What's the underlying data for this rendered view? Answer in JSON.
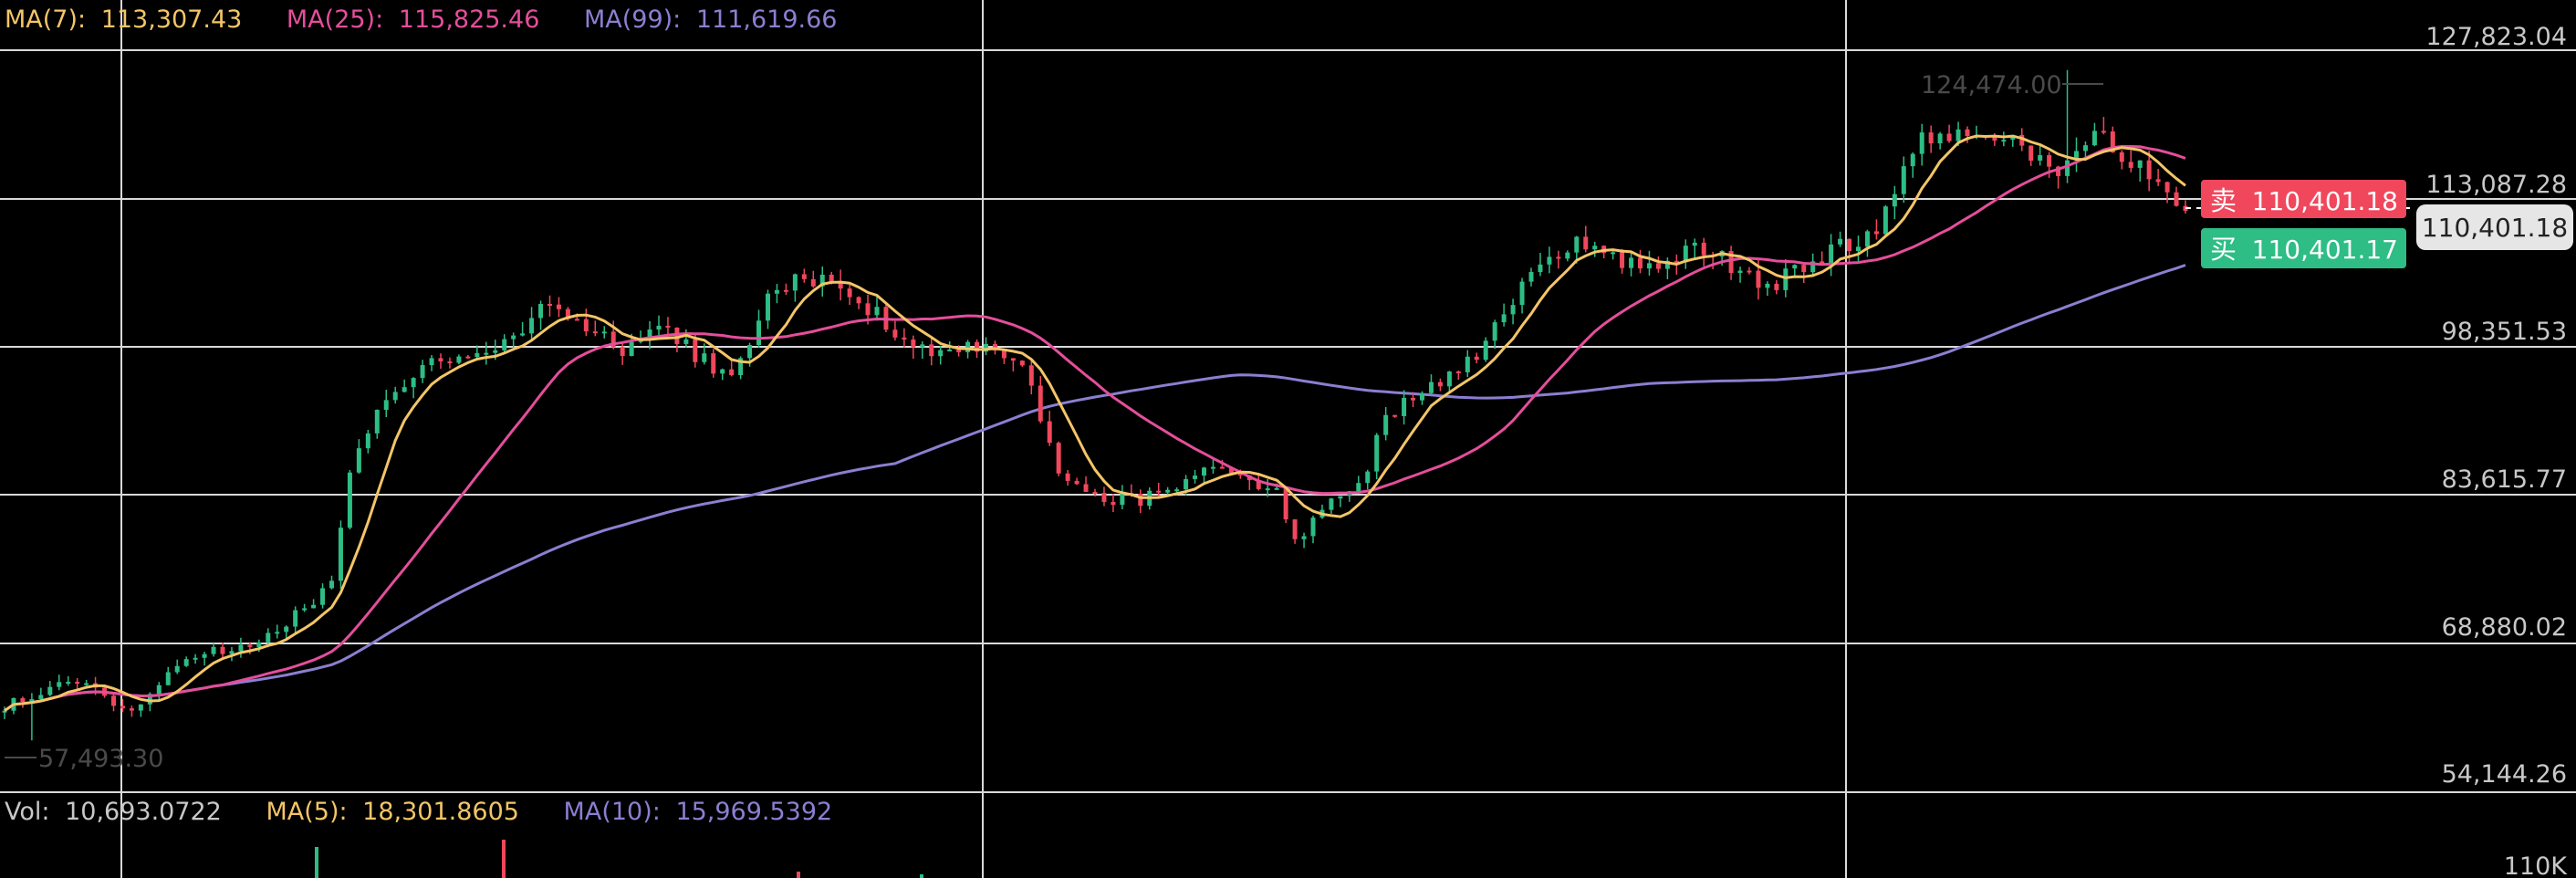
{
  "colors": {
    "background": "#000000",
    "grid": "#d9d9d9",
    "up": "#2dbd85",
    "down": "#f0475c",
    "ma_short": "#f3c567",
    "ma_mid": "#e44e9b",
    "ma_long": "#8b7fd1",
    "axis_text": "#c8c8c8",
    "annotation": "#4a4a4a",
    "sell_bg": "#f0475c",
    "buy_bg": "#2dbd85",
    "last_price_bg": "#e6e6e6"
  },
  "legend": {
    "ma7_label": "MA(7):",
    "ma7_value": "113,307.43",
    "ma25_label": "MA(25):",
    "ma25_value": "115,825.46",
    "ma99_label": "MA(99):",
    "ma99_value": "111,619.66"
  },
  "volume_legend": {
    "vol_label": "Vol:",
    "vol_value": "10,693.0722",
    "ma5_label": "MA(5):",
    "ma5_value": "18,301.8605",
    "ma10_label": "MA(10):",
    "ma10_value": "15,969.5392"
  },
  "price_axis_labels": [
    "127,823.04",
    "113,087.28",
    "98,351.53",
    "83,615.77",
    "68,880.02",
    "54,144.26"
  ],
  "volume_axis_label": "110K",
  "annotations": {
    "high": "124,474.00",
    "low": "57,493.30"
  },
  "order_book": {
    "sell_label": "卖",
    "sell_price": "110,401.18",
    "buy_label": "买",
    "buy_price": "110,401.17",
    "last_price": "110,401.18"
  },
  "chart_data": {
    "type": "candlestick",
    "y_axis_ticks": [
      127823.04,
      113087.28,
      98351.53,
      83615.77,
      68880.02,
      54144.26
    ],
    "ylim": [
      54144.26,
      127823.04
    ],
    "price_anchors": [
      [
        0,
        61000
      ],
      [
        8,
        63500
      ],
      [
        14,
        60500
      ],
      [
        20,
        66000
      ],
      [
        26,
        66500
      ],
      [
        32,
        70000
      ],
      [
        36,
        73000
      ],
      [
        38,
        85000
      ],
      [
        42,
        92000
      ],
      [
        46,
        95000
      ],
      [
        52,
        95500
      ],
      [
        56,
        98000
      ],
      [
        60,
        101000
      ],
      [
        64,
        99000
      ],
      [
        68,
        96500
      ],
      [
        72,
        99000
      ],
      [
        76,
        96000
      ],
      [
        80,
        93500
      ],
      [
        84,
        101500
      ],
      [
        88,
        104000
      ],
      [
        92,
        103000
      ],
      [
        96,
        100000
      ],
      [
        100,
        97000
      ],
      [
        104,
        96500
      ],
      [
        108,
        97000
      ],
      [
        112,
        95000
      ],
      [
        116,
        84000
      ],
      [
        120,
        82000
      ],
      [
        124,
        81500
      ],
      [
        128,
        82000
      ],
      [
        132,
        84000
      ],
      [
        136,
        84500
      ],
      [
        140,
        82000
      ],
      [
        142,
        77500
      ],
      [
        146,
        81500
      ],
      [
        150,
        84500
      ],
      [
        152,
        90000
      ],
      [
        158,
        93500
      ],
      [
        162,
        95500
      ],
      [
        166,
        101500
      ],
      [
        170,
        106000
      ],
      [
        174,
        107500
      ],
      [
        178,
        105500
      ],
      [
        182,
        104500
      ],
      [
        186,
        107000
      ],
      [
        190,
        105000
      ],
      [
        194,
        103000
      ],
      [
        198,
        104500
      ],
      [
        202,
        107000
      ],
      [
        206,
        108000
      ],
      [
        210,
        117000
      ],
      [
        214,
        118000
      ],
      [
        218,
        117500
      ],
      [
        222,
        117000
      ],
      [
        226,
        113500
      ],
      [
        230,
        118000
      ],
      [
        234,
        115500
      ],
      [
        238,
        113000
      ],
      [
        240,
        110401
      ]
    ],
    "period_count": 241,
    "high": 124474.0,
    "low": 57493.3,
    "last_price": 110401.18,
    "series": [
      {
        "name": "MA(7)",
        "last": 113307.43
      },
      {
        "name": "MA(25)",
        "last": 115825.46
      },
      {
        "name": "MA(99)",
        "last": 111619.66
      }
    ],
    "volume": {
      "axis_label": "110K",
      "last": 10693.0722,
      "ma5": 18301.8605,
      "ma10": 15969.5392
    }
  }
}
